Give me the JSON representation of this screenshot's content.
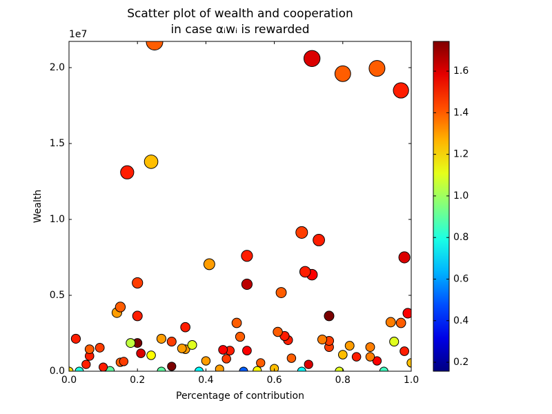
{
  "chart_data": {
    "type": "scatter",
    "title": "Scatter plot of wealth and cooperation",
    "subtitle": "in case αᵢwᵢ is rewarded",
    "x_label": "Percentage of contribution",
    "y_label": "Wealth",
    "y_offset_label": "1e7",
    "xlim": [
      0,
      1
    ],
    "xticks": [
      {
        "value": 0,
        "label": "0.0"
      },
      0.2,
      0.4,
      0.6,
      0.8,
      {
        "value": 1,
        "label": "1.0"
      }
    ],
    "ylim": [
      0,
      21727000
    ],
    "yticks": [
      {
        "value": 0,
        "label": "0.0"
      },
      {
        "value": 5000000,
        "label": "0.5"
      },
      {
        "value": 10000000,
        "label": "1.0"
      },
      {
        "value": 15000000,
        "label": "1.5"
      },
      {
        "value": 20000000,
        "label": "2.0"
      }
    ],
    "colormap": "jet",
    "clim": [
      0.157,
      1.743
    ],
    "cticks": [
      0.2,
      0.4,
      0.6,
      0.8,
      {
        "value": 1,
        "label": "1.0"
      },
      1.2,
      1.4,
      1.6
    ],
    "grid": false,
    "x": [
      0.25,
      0.71,
      0.8,
      0.9,
      0.97,
      0.17,
      0.24,
      0.68,
      0.73,
      0.41,
      0.52,
      0.98,
      0.69,
      0.71,
      0.2,
      0.52,
      0.62,
      0.15,
      0.14,
      0.2,
      0.76,
      0.99,
      0.34,
      0.49,
      0.94,
      0.97,
      0.61,
      0.63,
      0.64,
      0.5,
      0.02,
      0.27,
      0.3,
      0.74,
      0.76,
      0.95,
      0.18,
      0.2,
      0.36,
      0.33,
      0.34,
      0.45,
      0.47,
      0.52,
      0.82,
      0.88,
      0.09,
      0.06,
      0.76,
      0.98,
      0.21,
      0.24,
      0.06,
      0.8,
      0.84,
      0.88,
      0.65,
      0.46,
      0.16,
      0.15,
      0.4,
      0.56,
      0.7,
      0.9,
      1.0,
      0.05,
      0.3,
      0.1,
      0.0,
      0.03,
      0.12,
      0.27,
      0.38,
      0.51,
      0.55,
      0.68,
      0.79,
      0.92,
      0.44,
      0.6
    ],
    "y": [
      21700000,
      20600000,
      19600000,
      19950000,
      18500000,
      13100000,
      13800000,
      9140000,
      8640000,
      7050000,
      7600000,
      7500000,
      6550000,
      6360000,
      5820000,
      5730000,
      5180000,
      4230000,
      3860000,
      3640000,
      3640000,
      3820000,
      2900000,
      3180000,
      3230000,
      3180000,
      2590000,
      2320000,
      2050000,
      2270000,
      2140000,
      2140000,
      1950000,
      2090000,
      2000000,
      1950000,
      1860000,
      1860000,
      1730000,
      1500000,
      1450000,
      1410000,
      1360000,
      1360000,
      1680000,
      1590000,
      1550000,
      1450000,
      1590000,
      1320000,
      1180000,
      1050000,
      1000000,
      1090000,
      950000,
      950000,
      860000,
      820000,
      640000,
      590000,
      680000,
      550000,
      450000,
      680000,
      550000,
      450000,
      320000,
      270000,
      0,
      0,
      40000,
      0,
      0,
      0,
      40000,
      0,
      0,
      0,
      140000,
      180000
    ],
    "c": [
      1.4,
      1.6,
      1.4,
      1.4,
      1.5,
      1.5,
      1.25,
      1.45,
      1.5,
      1.3,
      1.5,
      1.6,
      1.5,
      1.55,
      1.45,
      1.65,
      1.4,
      1.4,
      1.3,
      1.5,
      1.75,
      1.55,
      1.5,
      1.4,
      1.35,
      1.4,
      1.4,
      1.5,
      1.5,
      1.4,
      1.5,
      1.3,
      1.45,
      1.35,
      1.45,
      1.1,
      1.05,
      1.75,
      1.1,
      1.3,
      1.3,
      1.55,
      1.5,
      1.55,
      1.3,
      1.35,
      1.45,
      1.4,
      1.45,
      1.5,
      1.6,
      1.15,
      1.5,
      1.25,
      1.5,
      1.35,
      1.4,
      1.45,
      1.45,
      1.4,
      1.3,
      1.4,
      1.6,
      1.55,
      1.25,
      1.5,
      1.75,
      1.5,
      1.2,
      0.8,
      0.9,
      0.9,
      0.75,
      0.5,
      1.15,
      0.75,
      1.1,
      0.85,
      1.3,
      1.25
    ]
  }
}
